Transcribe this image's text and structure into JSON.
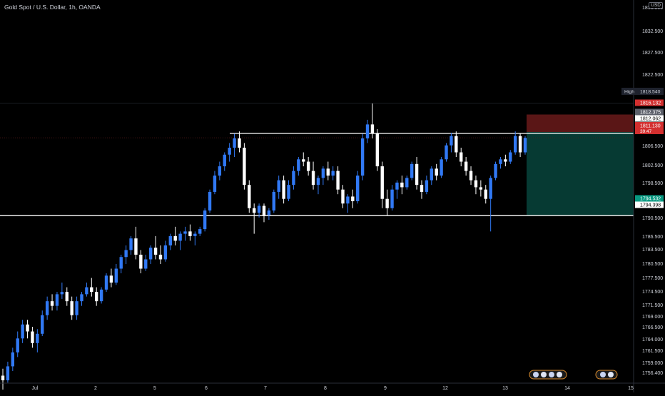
{
  "title": "Gold Spot / U.S. Dollar, 1h, OANDA",
  "currency": "USD",
  "colors": {
    "background": "#000000",
    "bull": "#3179f5",
    "bear": "#ffffff",
    "text": "#d1d4dc",
    "stop_zone": "#5a1616",
    "target_zone": "#063a33",
    "high_label": "#1e222d",
    "stop_label": "#d32f2f",
    "target_label": "#089981"
  },
  "axis": {
    "y_ticks": [
      "1836.900",
      "1832.500",
      "1827.500",
      "1822.500",
      "1806.500",
      "1802.500",
      "1798.500",
      "1790.500",
      "1786.500",
      "1783.500",
      "1780.500",
      "1777.500",
      "1774.500",
      "1771.500",
      "1769.000",
      "1766.500",
      "1764.000",
      "1761.500",
      "1759.000",
      "1756.400"
    ],
    "x_ticks": [
      "Jul",
      "2",
      "5",
      "6",
      "7",
      "8",
      "9",
      "12",
      "13",
      "14",
      "15"
    ]
  },
  "price_labels": {
    "high_caption": "High",
    "high_value": "1818.540",
    "stop_value": "1816.132",
    "entry_value": "1812.375",
    "level_value": "1812.062",
    "last_value": "1811.130",
    "countdown": "39:47",
    "target_value": "1794.532",
    "support_value": "1794.398"
  },
  "chart_data": {
    "type": "candlestick",
    "ylim": [
      1755,
      1838
    ],
    "horizontal_levels": [
      1812.062,
      1794.398
    ],
    "position": {
      "entry": 1812.375,
      "stop": 1816.132,
      "target": 1794.532
    },
    "candles": [
      [
        1760,
        1761.5,
        1757,
        1759
      ],
      [
        1759,
        1763,
        1758.5,
        1762
      ],
      [
        1762,
        1766,
        1761,
        1765
      ],
      [
        1765,
        1769.5,
        1764,
        1768
      ],
      [
        1768,
        1772,
        1767,
        1771
      ],
      [
        1771,
        1772,
        1768,
        1769.5
      ],
      [
        1769.5,
        1770.5,
        1766,
        1767
      ],
      [
        1767,
        1770,
        1765,
        1769
      ],
      [
        1769,
        1774,
        1768.5,
        1773
      ],
      [
        1773,
        1777,
        1772,
        1776
      ],
      [
        1776,
        1777.5,
        1774,
        1775
      ],
      [
        1775,
        1778,
        1774,
        1777.5
      ],
      [
        1777.5,
        1780,
        1776.5,
        1778
      ],
      [
        1778,
        1779,
        1775,
        1776
      ],
      [
        1776,
        1777,
        1772,
        1773
      ],
      [
        1773,
        1777,
        1772,
        1776
      ],
      [
        1776,
        1778,
        1775,
        1777.5
      ],
      [
        1777.5,
        1780,
        1777,
        1779
      ],
      [
        1779,
        1781,
        1777,
        1778
      ],
      [
        1778,
        1779,
        1775,
        1776
      ],
      [
        1776,
        1779,
        1775.5,
        1778.5
      ],
      [
        1778.5,
        1782,
        1778,
        1781.5
      ],
      [
        1781.5,
        1783,
        1779,
        1780
      ],
      [
        1780,
        1784,
        1779.5,
        1783
      ],
      [
        1783,
        1786,
        1782,
        1785.5
      ],
      [
        1785.5,
        1788,
        1784,
        1787
      ],
      [
        1787,
        1790,
        1786,
        1789.5
      ],
      [
        1789.5,
        1792,
        1785,
        1786
      ],
      [
        1786,
        1787,
        1782,
        1783
      ],
      [
        1783,
        1786,
        1782.5,
        1785
      ],
      [
        1785,
        1788,
        1784,
        1787.5
      ],
      [
        1787.5,
        1790,
        1785,
        1786
      ],
      [
        1786,
        1788,
        1784,
        1785
      ],
      [
        1785,
        1789,
        1784.5,
        1788
      ],
      [
        1788,
        1790.5,
        1787,
        1790
      ],
      [
        1790,
        1792,
        1788,
        1789
      ],
      [
        1789,
        1791,
        1787,
        1790.5
      ],
      [
        1790.5,
        1792,
        1789,
        1791
      ],
      [
        1791,
        1792.5,
        1789,
        1790
      ],
      [
        1790,
        1791,
        1788,
        1790.5
      ],
      [
        1790.5,
        1792,
        1790,
        1791.5
      ],
      [
        1791.5,
        1796,
        1791,
        1795.5
      ],
      [
        1795.5,
        1800,
        1795,
        1799.5
      ],
      [
        1799.5,
        1804,
        1799,
        1803
      ],
      [
        1803,
        1806,
        1802,
        1805
      ],
      [
        1805,
        1808,
        1804,
        1807.5
      ],
      [
        1807.5,
        1810,
        1806,
        1809
      ],
      [
        1809,
        1812,
        1807,
        1811
      ],
      [
        1811,
        1812.5,
        1808,
        1809
      ],
      [
        1809,
        1810,
        1800,
        1801
      ],
      [
        1801,
        1802,
        1795,
        1796
      ],
      [
        1796,
        1797,
        1790.5,
        1795
      ],
      [
        1795,
        1797,
        1794,
        1796.5
      ],
      [
        1796.5,
        1797,
        1793,
        1794.5
      ],
      [
        1794.5,
        1796,
        1793.5,
        1795.5
      ],
      [
        1795.5,
        1800,
        1795,
        1799.5
      ],
      [
        1799.5,
        1803,
        1798,
        1802
      ],
      [
        1802,
        1803,
        1797,
        1798
      ],
      [
        1798,
        1802,
        1797.5,
        1801
      ],
      [
        1801,
        1805,
        1800,
        1804
      ],
      [
        1804,
        1807,
        1803,
        1806.5
      ],
      [
        1806.5,
        1808,
        1805,
        1806
      ],
      [
        1806,
        1807,
        1803,
        1804
      ],
      [
        1804,
        1806,
        1800,
        1801
      ],
      [
        1801,
        1803,
        1799,
        1802.5
      ],
      [
        1802.5,
        1805,
        1801,
        1804.5
      ],
      [
        1804.5,
        1806,
        1802,
        1803
      ],
      [
        1803,
        1805,
        1802,
        1804
      ],
      [
        1804,
        1805,
        1799,
        1800
      ],
      [
        1800,
        1801,
        1796,
        1797
      ],
      [
        1797,
        1799,
        1795,
        1798.5
      ],
      [
        1798.5,
        1800,
        1796,
        1797.5
      ],
      [
        1797.5,
        1804,
        1797,
        1803
      ],
      [
        1803,
        1812,
        1802,
        1811
      ],
      [
        1811,
        1815,
        1810,
        1814
      ],
      [
        1814,
        1818.5,
        1811,
        1812
      ],
      [
        1812,
        1813,
        1804,
        1805
      ],
      [
        1805,
        1806,
        1796,
        1798
      ],
      [
        1798,
        1800,
        1794.5,
        1796
      ],
      [
        1796,
        1801,
        1795.5,
        1800
      ],
      [
        1800,
        1802,
        1798,
        1801.5
      ],
      [
        1801.5,
        1803,
        1799,
        1800.5
      ],
      [
        1800.5,
        1803,
        1800,
        1802.5
      ],
      [
        1802.5,
        1806,
        1802,
        1805.5
      ],
      [
        1805.5,
        1807,
        1800,
        1801
      ],
      [
        1801,
        1802,
        1798,
        1799.5
      ],
      [
        1799.5,
        1803,
        1799,
        1802
      ],
      [
        1802,
        1805,
        1801,
        1804.5
      ],
      [
        1804.5,
        1805.5,
        1802,
        1803
      ],
      [
        1803,
        1807,
        1802.5,
        1806.5
      ],
      [
        1806.5,
        1810,
        1806,
        1809.5
      ],
      [
        1809.5,
        1812.2,
        1808,
        1811.5
      ],
      [
        1811.5,
        1812.5,
        1807,
        1808
      ],
      [
        1808,
        1809,
        1805,
        1806
      ],
      [
        1806,
        1807,
        1803,
        1804
      ],
      [
        1804,
        1805,
        1801,
        1802
      ],
      [
        1802,
        1803,
        1799,
        1800.5
      ],
      [
        1800.5,
        1802,
        1798.5,
        1800
      ],
      [
        1800,
        1801,
        1797,
        1798
      ],
      [
        1798,
        1803,
        1791,
        1802.5
      ],
      [
        1802.5,
        1806,
        1802,
        1805.5
      ],
      [
        1805.5,
        1807,
        1804.5,
        1806.5
      ],
      [
        1806.5,
        1807.5,
        1805,
        1806
      ],
      [
        1806,
        1808.5,
        1805.5,
        1808
      ],
      [
        1808,
        1812.5,
        1807.5,
        1811.5
      ],
      [
        1811.5,
        1812,
        1807,
        1808
      ],
      [
        1808,
        1811.5,
        1807.5,
        1811.1
      ]
    ]
  }
}
